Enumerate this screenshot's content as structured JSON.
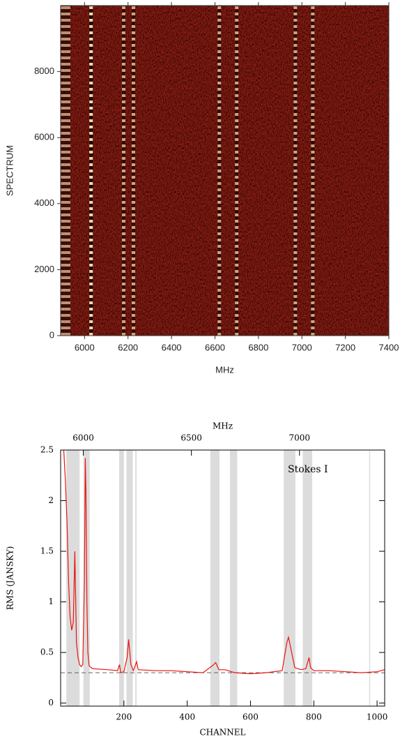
{
  "chart_data": [
    {
      "type": "heatmap",
      "xlabel": "MHz",
      "ylabel": "SPECTRUM",
      "xlim": [
        5890,
        7400
      ],
      "xticks": [
        6000,
        6200,
        6400,
        6600,
        6800,
        7000,
        7200,
        7400
      ],
      "ylim": [
        0,
        10000
      ],
      "yticks": [
        0,
        2000,
        4000,
        6000,
        8000
      ],
      "stripes_mhz": [
        6030,
        6180,
        6225,
        6620,
        6700,
        6970,
        7050
      ],
      "color": "#8a1c12"
    },
    {
      "type": "line",
      "xlabel": "CHANNEL",
      "ylabel": "RMS (JANSKY)",
      "x2label": "MHz",
      "annotation": "Stokes I",
      "xlim": [
        0,
        1024
      ],
      "xticks": [
        200,
        400,
        600,
        800,
        1000
      ],
      "x2lim": [
        5895,
        7394
      ],
      "x2ticks": [
        6000,
        6500,
        7000
      ],
      "ylim": [
        -0.03,
        2.5
      ],
      "yticks": [
        0,
        0.5,
        1,
        1.5,
        2,
        2.5
      ],
      "reference_line": 0.3,
      "shaded_regions": [
        [
          18,
          60
        ],
        [
          72,
          92
        ],
        [
          185,
          200
        ],
        [
          208,
          228
        ],
        [
          236,
          240
        ],
        [
          473,
          502
        ],
        [
          535,
          558
        ],
        [
          705,
          742
        ],
        [
          765,
          795
        ],
        [
          975,
          978
        ]
      ],
      "x": [
        10,
        15,
        20,
        25,
        30,
        35,
        40,
        45,
        50,
        55,
        60,
        65,
        70,
        75,
        78,
        80,
        83,
        86,
        90,
        100,
        150,
        180,
        186,
        190,
        200,
        210,
        215,
        222,
        230,
        240,
        245,
        300,
        350,
        400,
        450,
        480,
        490,
        500,
        520,
        540,
        550,
        600,
        650,
        700,
        715,
        720,
        730,
        740,
        760,
        775,
        785,
        790,
        800,
        850,
        900,
        950,
        1000,
        1024
      ],
      "series": [
        {
          "color": "#e8140f",
          "values": [
            2.5,
            2.2,
            1.8,
            1.2,
            0.85,
            0.72,
            0.8,
            1.5,
            0.6,
            0.45,
            0.38,
            0.36,
            0.38,
            1.2,
            2.42,
            2.1,
            1.0,
            0.5,
            0.37,
            0.34,
            0.33,
            0.32,
            0.38,
            0.3,
            0.31,
            0.45,
            0.63,
            0.38,
            0.32,
            0.41,
            0.33,
            0.32,
            0.32,
            0.31,
            0.3,
            0.37,
            0.4,
            0.33,
            0.33,
            0.31,
            0.3,
            0.29,
            0.3,
            0.32,
            0.6,
            0.65,
            0.5,
            0.35,
            0.33,
            0.34,
            0.45,
            0.35,
            0.32,
            0.32,
            0.31,
            0.3,
            0.31,
            0.33
          ]
        }
      ]
    }
  ]
}
